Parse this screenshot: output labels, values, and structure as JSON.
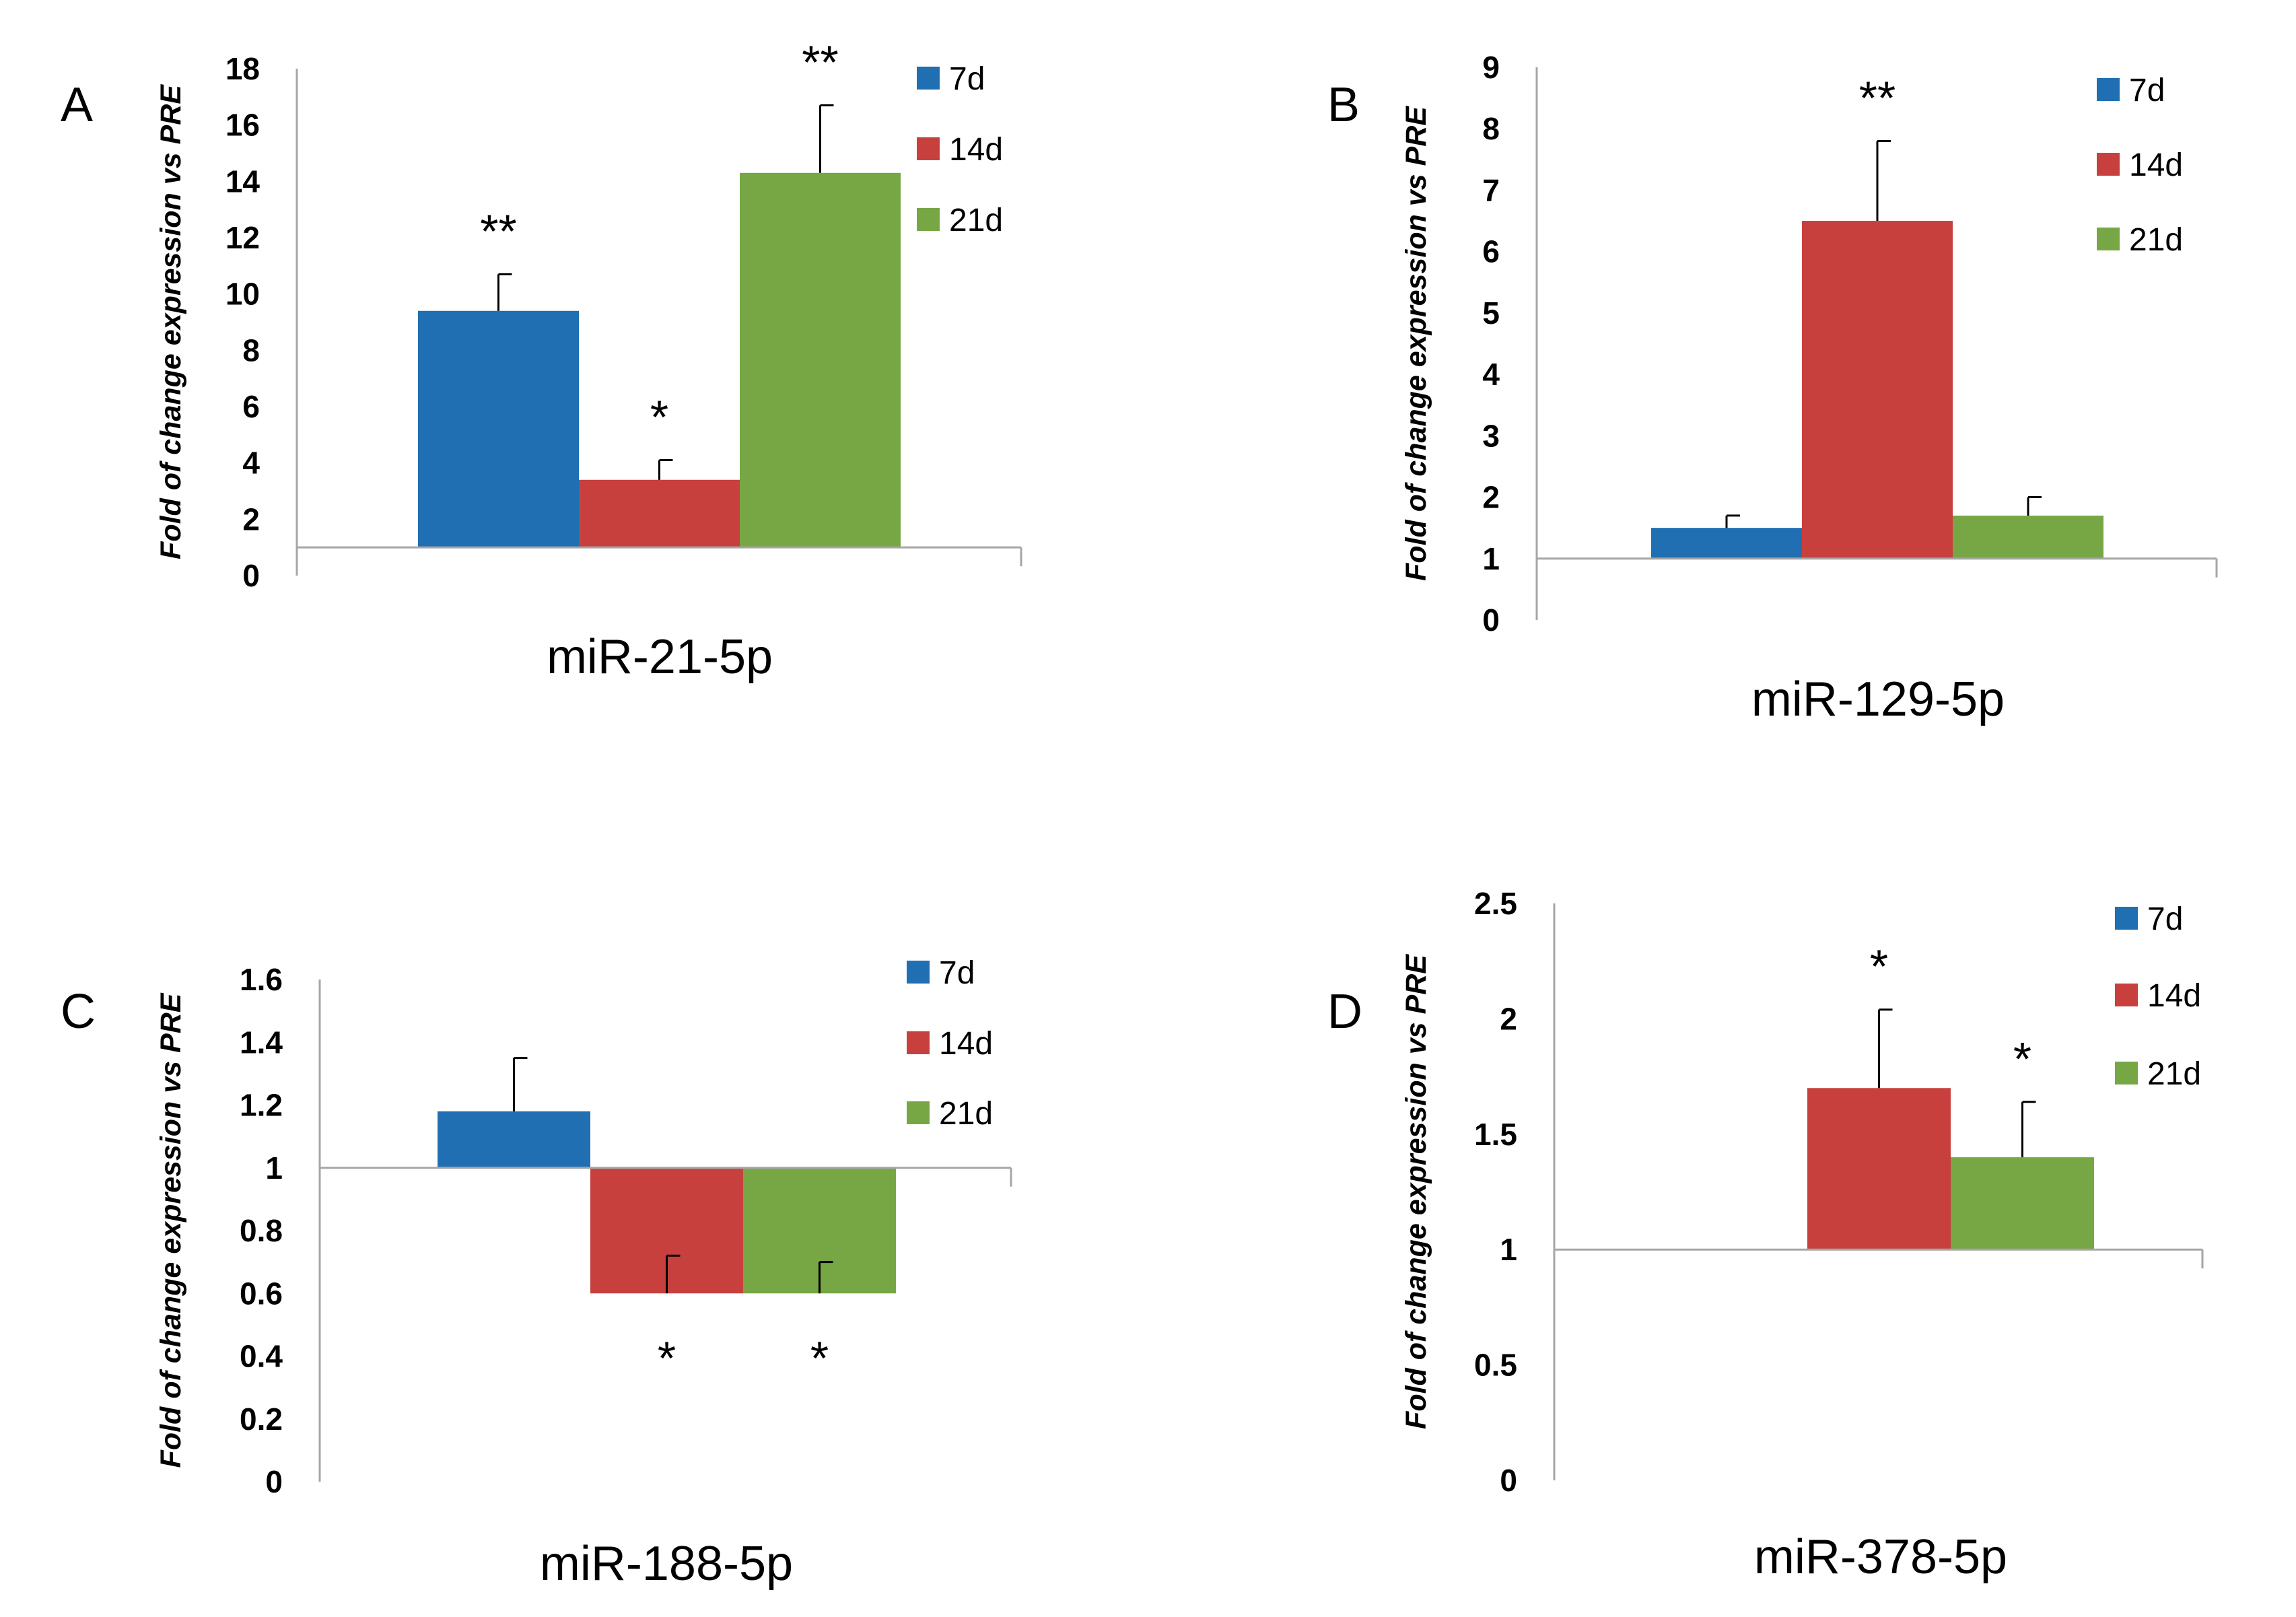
{
  "colors": {
    "7d": "#1f6fb2",
    "14d": "#c8403e",
    "21d": "#77a744",
    "axis": "#a6a6a6",
    "error_bar": "#000000"
  },
  "chart_data": [
    {
      "panel": "A",
      "type": "bar",
      "xlabel": "miR-21-5p",
      "ylabel": "Fold of change expression vs PRE",
      "ylim": [
        0,
        18
      ],
      "yticks": [
        0,
        2,
        4,
        6,
        8,
        10,
        12,
        14,
        16,
        18
      ],
      "baseline": 1,
      "legend": {
        "position": "top-right",
        "entries": [
          "7d",
          "14d",
          "21d"
        ]
      },
      "series": [
        {
          "name": "7d",
          "value": 9.4,
          "error": 1.3,
          "significance": "**"
        },
        {
          "name": "14d",
          "value": 3.4,
          "error": 0.7,
          "significance": "*"
        },
        {
          "name": "21d",
          "value": 14.3,
          "error": 2.4,
          "significance": "**"
        }
      ]
    },
    {
      "panel": "B",
      "type": "bar",
      "xlabel": "miR-129-5p",
      "ylabel": "Fold of change expression vs PRE",
      "ylim": [
        0,
        9
      ],
      "yticks": [
        0,
        1,
        2,
        3,
        4,
        5,
        6,
        7,
        8,
        9
      ],
      "baseline": 1,
      "legend": {
        "position": "top-right",
        "entries": [
          "7d",
          "14d",
          "21d"
        ]
      },
      "series": [
        {
          "name": "7d",
          "value": 1.5,
          "error": 0.2,
          "significance": ""
        },
        {
          "name": "14d",
          "value": 6.5,
          "error": 1.3,
          "significance": "**"
        },
        {
          "name": "21d",
          "value": 1.7,
          "error": 0.3,
          "significance": ""
        }
      ]
    },
    {
      "panel": "C",
      "type": "bar",
      "xlabel": "miR-188-5p",
      "ylabel": "Fold of change expression vs PRE",
      "ylim": [
        0,
        1.6
      ],
      "yticks": [
        "0",
        "0.2",
        "0.4",
        "0.6",
        "0.8",
        "1",
        "1.2",
        "1.4",
        "1.6"
      ],
      "baseline": 1,
      "legend": {
        "position": "top-right",
        "entries": [
          "7d",
          "14d",
          "21d"
        ]
      },
      "series": [
        {
          "name": "7d",
          "value": 1.18,
          "error": 0.17,
          "significance": ""
        },
        {
          "name": "14d",
          "value": 0.6,
          "error": 0.12,
          "significance": "*"
        },
        {
          "name": "21d",
          "value": 0.6,
          "error": 0.1,
          "significance": "*"
        }
      ]
    },
    {
      "panel": "D",
      "type": "bar",
      "xlabel": "miR-378-5p",
      "ylabel": "Fold of change expression vs PRE",
      "ylim": [
        0,
        2.5
      ],
      "yticks": [
        "0",
        "0.5",
        "1",
        "1.5",
        "2",
        "2.5"
      ],
      "baseline": 1,
      "legend": {
        "position": "top-right",
        "entries": [
          "7d",
          "14d",
          "21d"
        ]
      },
      "series": [
        {
          "name": "7d",
          "value": 1.0,
          "error": 0,
          "significance": ""
        },
        {
          "name": "14d",
          "value": 1.7,
          "error": 0.34,
          "significance": "*"
        },
        {
          "name": "21d",
          "value": 1.4,
          "error": 0.24,
          "significance": "*"
        }
      ]
    }
  ]
}
